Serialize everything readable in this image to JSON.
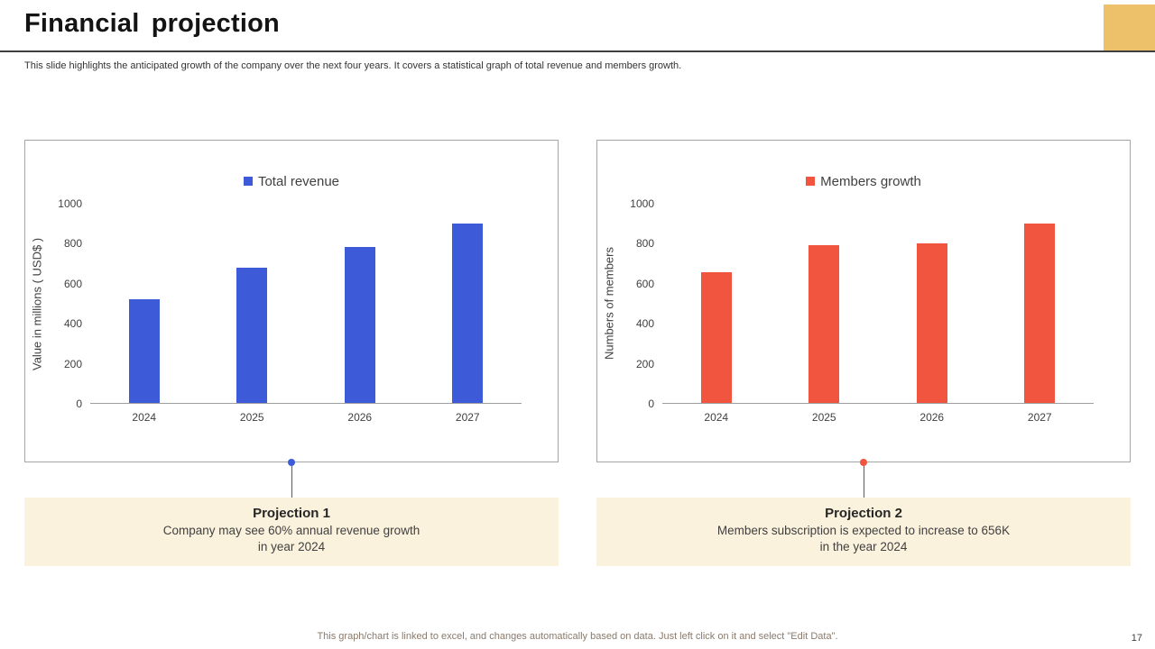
{
  "header": {
    "title": "Financial projection",
    "subtitle": "This slide highlights the anticipated growth of the company over the next four years. It covers a statistical graph of total revenue and members growth.",
    "accent_color": "#ecc169"
  },
  "chart_data": [
    {
      "type": "bar",
      "title": "Total revenue",
      "categories": [
        "2024",
        "2025",
        "2026",
        "2027"
      ],
      "values": [
        520,
        680,
        785,
        900
      ],
      "xlabel": "",
      "ylabel": "Value in millions ( USD$ )",
      "ylim": [
        0,
        1000
      ],
      "yticks": [
        0,
        200,
        400,
        600,
        800,
        1000
      ],
      "color": "#3d5bd9",
      "grid": false,
      "legend_position": "top"
    },
    {
      "type": "bar",
      "title": "Members growth",
      "categories": [
        "2024",
        "2025",
        "2026",
        "2027"
      ],
      "values": [
        656,
        790,
        800,
        900
      ],
      "xlabel": "",
      "ylabel": "Numbers of members",
      "ylim": [
        0,
        1000
      ],
      "yticks": [
        0,
        200,
        400,
        600,
        800,
        1000
      ],
      "color": "#f1543f",
      "grid": false,
      "legend_position": "top"
    }
  ],
  "callouts": [
    {
      "title": "Projection 1",
      "line1": "Company may see 60% annual revenue growth",
      "line2": "in year 2024",
      "bg_color": "#fbf2de",
      "dot_color": "#3d5bd9"
    },
    {
      "title": "Projection 2",
      "line1": "Members subscription is expected to increase to 656K",
      "line2": "in the year 2024",
      "bg_color": "#fbf2de",
      "dot_color": "#f1543f"
    }
  ],
  "footer": {
    "note": "This graph/chart is linked to excel, and changes automatically based on data. Just left click on it and select \"Edit Data\".",
    "page_number": "17"
  }
}
